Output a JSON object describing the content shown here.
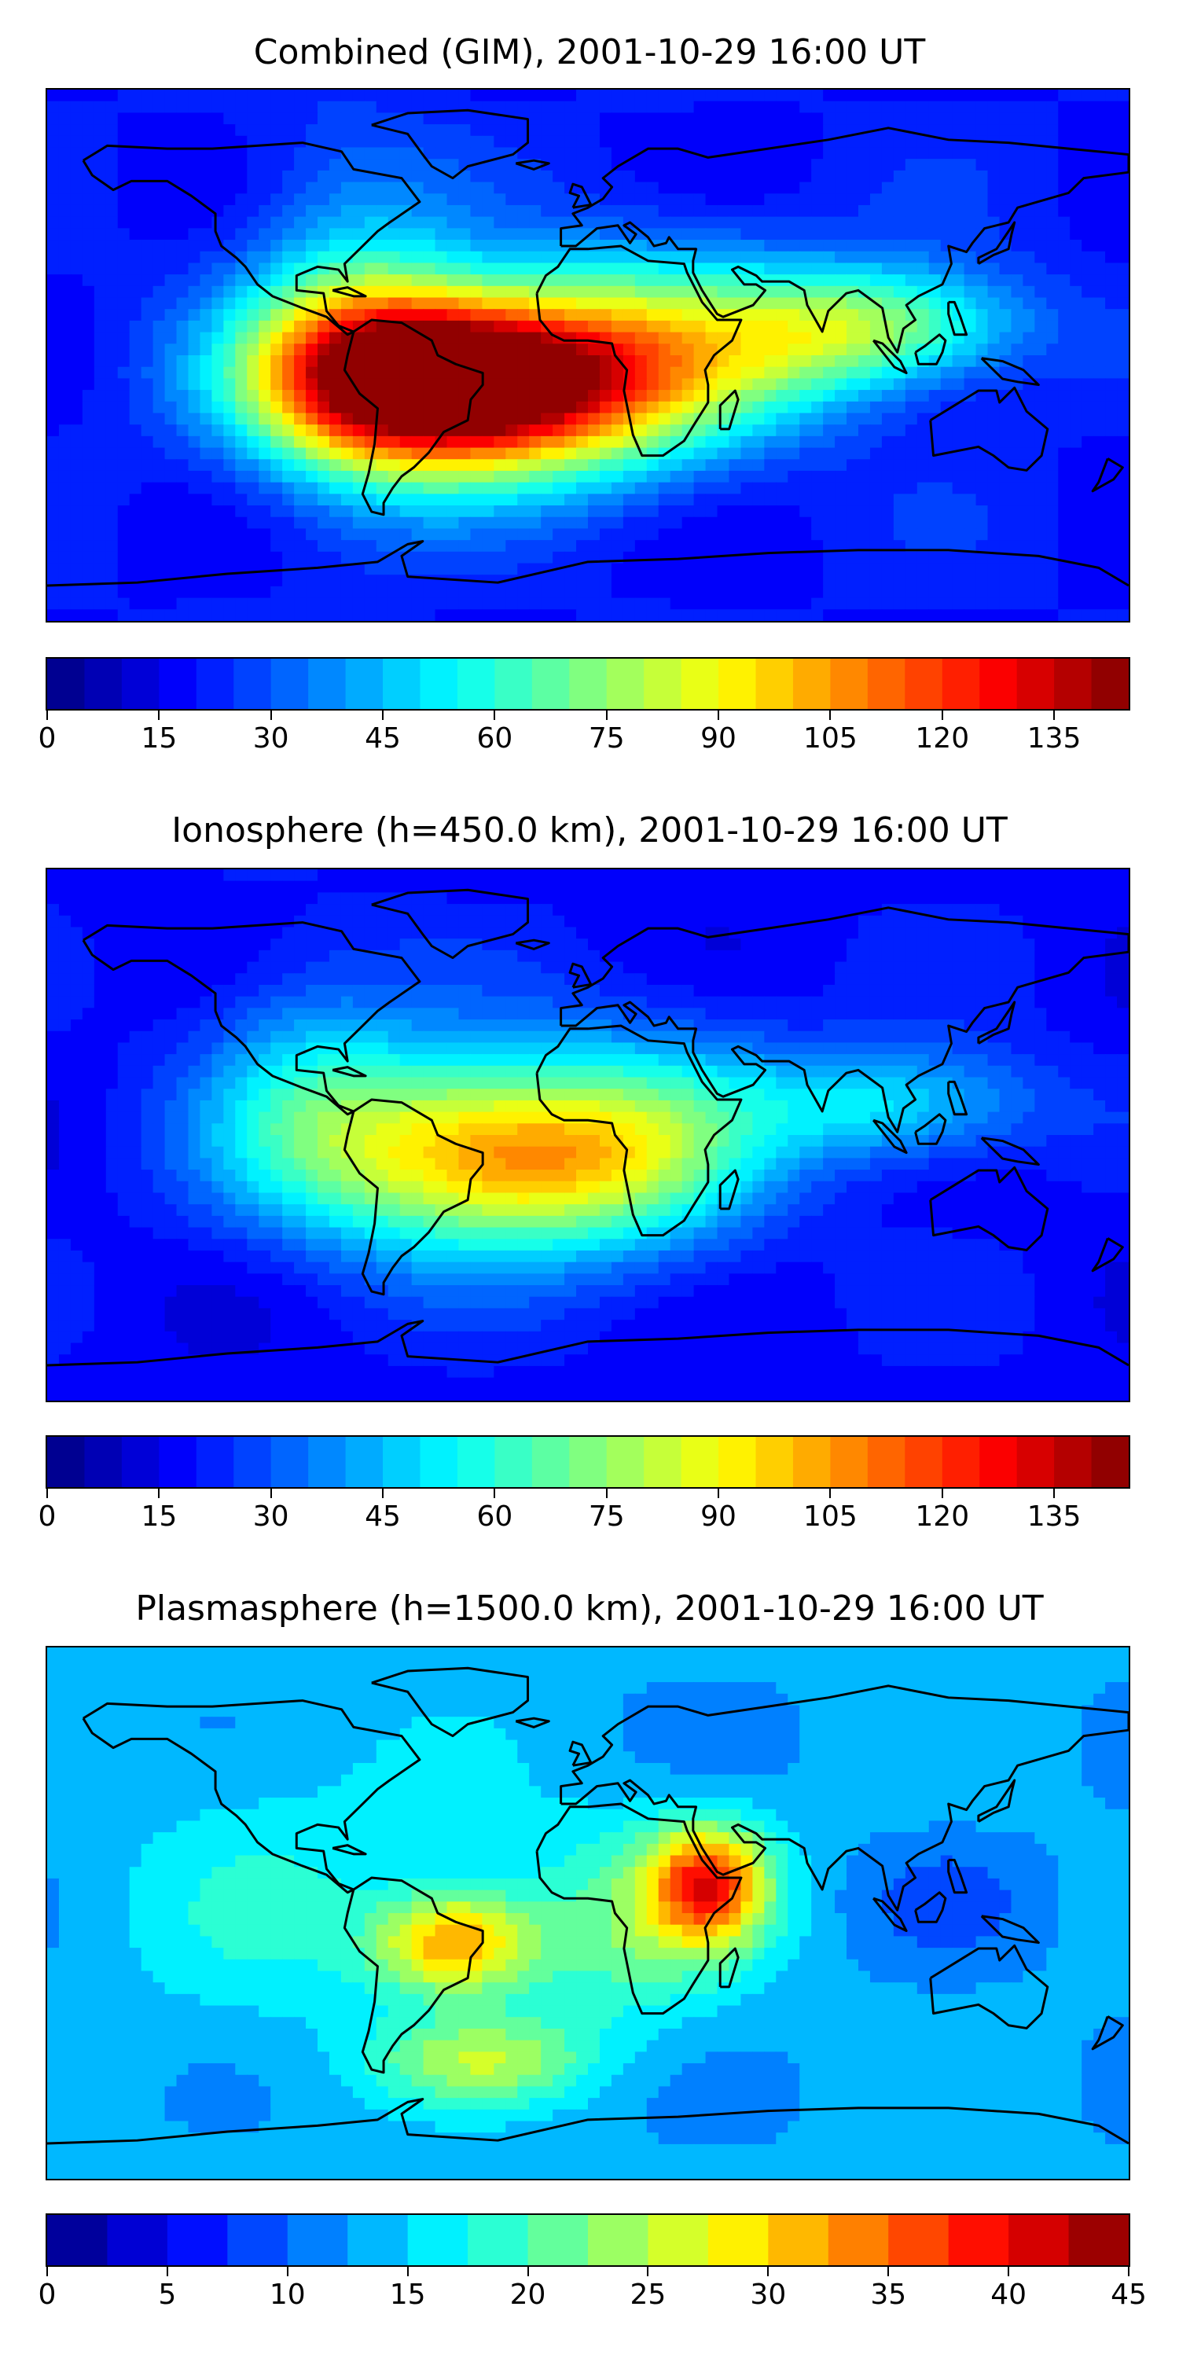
{
  "panels": [
    {
      "id": "combined",
      "title": "Combined (GIM), 2001-10-29 16:00 UT",
      "colorbar": {
        "min": 0,
        "max": 145,
        "levels": 29,
        "ticks": [
          0,
          15,
          30,
          45,
          60,
          75,
          90,
          105,
          120,
          135
        ]
      },
      "field": [
        {
          "lon": -55,
          "lat": -8,
          "value": 125,
          "sx": 38,
          "sy": 20
        },
        {
          "lon": -15,
          "lat": -10,
          "value": 65,
          "sx": 40,
          "sy": 22
        },
        {
          "lon": 25,
          "lat": 5,
          "value": 35,
          "sx": 30,
          "sy": 25
        },
        {
          "lon": -80,
          "lat": 10,
          "value": 30,
          "sx": 25,
          "sy": 40
        },
        {
          "lon": 105,
          "lat": 10,
          "value": 45,
          "sx": 30,
          "sy": 14
        },
        {
          "lon": 70,
          "lat": 5,
          "value": 30,
          "sx": 25,
          "sy": 18
        }
      ],
      "background": 20
    },
    {
      "id": "ionosphere",
      "title": "Ionosphere  (h=450.0 km), 2001-10-29 16:00 UT",
      "colorbar": {
        "min": 0,
        "max": 145,
        "levels": 29,
        "ticks": [
          0,
          15,
          30,
          45,
          60,
          75,
          90,
          105,
          120,
          135
        ]
      },
      "field": [
        {
          "lon": -50,
          "lat": -5,
          "value": 60,
          "sx": 42,
          "sy": 24
        },
        {
          "lon": -10,
          "lat": -8,
          "value": 40,
          "sx": 35,
          "sy": 20
        },
        {
          "lon": 25,
          "lat": 0,
          "value": 25,
          "sx": 30,
          "sy": 30
        },
        {
          "lon": 100,
          "lat": 10,
          "value": 35,
          "sx": 35,
          "sy": 14
        },
        {
          "lon": -95,
          "lat": 20,
          "value": 20,
          "sx": 25,
          "sy": 30
        }
      ],
      "background": 18
    },
    {
      "id": "plasmasphere",
      "title": "Plasmasphere (h=1500.0 km), 2001-10-29 16:00 UT",
      "colorbar": {
        "min": 0,
        "max": 45,
        "levels": 18,
        "ticks": [
          0,
          5,
          10,
          15,
          20,
          25,
          30,
          35,
          40,
          45
        ]
      },
      "field": [
        {
          "lon": 40,
          "lat": 10,
          "value": 22,
          "sx": 14,
          "sy": 14
        },
        {
          "lon": -45,
          "lat": -10,
          "value": 18,
          "sx": 18,
          "sy": 12
        },
        {
          "lon": -35,
          "lat": -50,
          "value": 10,
          "sx": 25,
          "sy": 10
        },
        {
          "lon": 10,
          "lat": -5,
          "value": 8,
          "sx": 30,
          "sy": 25
        },
        {
          "lon": -100,
          "lat": 5,
          "value": 4,
          "sx": 40,
          "sy": 40
        },
        {
          "lon": 120,
          "lat": 5,
          "value": -3,
          "sx": 20,
          "sy": 14
        }
      ],
      "background": 13
    }
  ]
}
